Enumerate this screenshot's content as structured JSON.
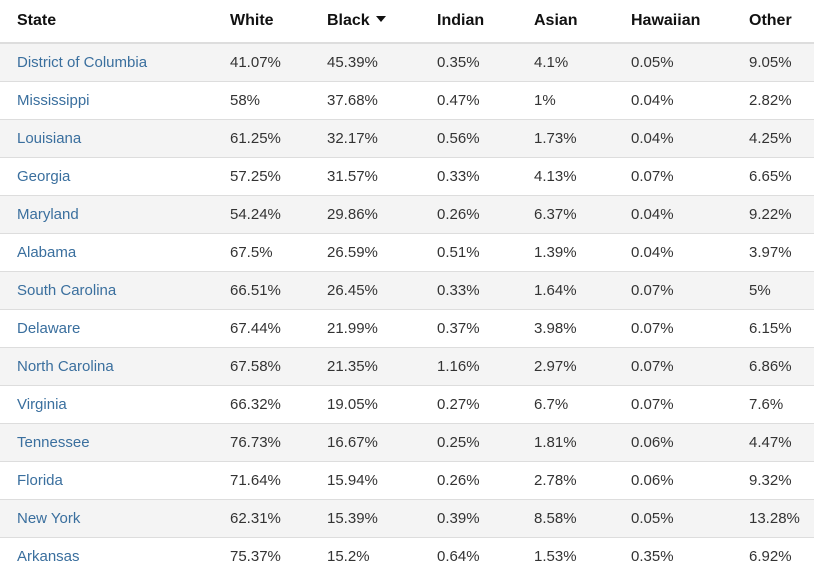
{
  "table": {
    "columns": [
      {
        "label": "State",
        "sorted": false
      },
      {
        "label": "White",
        "sorted": false
      },
      {
        "label": "Black",
        "sorted": true,
        "sort_direction": "descending"
      },
      {
        "label": "Indian",
        "sorted": false
      },
      {
        "label": "Asian",
        "sorted": false
      },
      {
        "label": "Hawaiian",
        "sorted": false
      },
      {
        "label": "Other",
        "sorted": false
      }
    ],
    "rows": [
      [
        "District of Columbia",
        "41.07%",
        "45.39%",
        "0.35%",
        "4.1%",
        "0.05%",
        "9.05%"
      ],
      [
        "Mississippi",
        "58%",
        "37.68%",
        "0.47%",
        "1%",
        "0.04%",
        "2.82%"
      ],
      [
        "Louisiana",
        "61.25%",
        "32.17%",
        "0.56%",
        "1.73%",
        "0.04%",
        "4.25%"
      ],
      [
        "Georgia",
        "57.25%",
        "31.57%",
        "0.33%",
        "4.13%",
        "0.07%",
        "6.65%"
      ],
      [
        "Maryland",
        "54.24%",
        "29.86%",
        "0.26%",
        "6.37%",
        "0.04%",
        "9.22%"
      ],
      [
        "Alabama",
        "67.5%",
        "26.59%",
        "0.51%",
        "1.39%",
        "0.04%",
        "3.97%"
      ],
      [
        "South Carolina",
        "66.51%",
        "26.45%",
        "0.33%",
        "1.64%",
        "0.07%",
        "5%"
      ],
      [
        "Delaware",
        "67.44%",
        "21.99%",
        "0.37%",
        "3.98%",
        "0.07%",
        "6.15%"
      ],
      [
        "North Carolina",
        "67.58%",
        "21.35%",
        "1.16%",
        "2.97%",
        "0.07%",
        "6.86%"
      ],
      [
        "Virginia",
        "66.32%",
        "19.05%",
        "0.27%",
        "6.7%",
        "0.07%",
        "7.6%"
      ],
      [
        "Tennessee",
        "76.73%",
        "16.67%",
        "0.25%",
        "1.81%",
        "0.06%",
        "4.47%"
      ],
      [
        "Florida",
        "71.64%",
        "15.94%",
        "0.26%",
        "2.78%",
        "0.06%",
        "9.32%"
      ],
      [
        "New York",
        "62.31%",
        "15.39%",
        "0.39%",
        "8.58%",
        "0.05%",
        "13.28%"
      ],
      [
        "Arkansas",
        "75.37%",
        "15.2%",
        "0.64%",
        "1.53%",
        "0.35%",
        "6.92%"
      ]
    ]
  },
  "colors": {
    "link": "#3a6f9e",
    "stripe": "#f4f4f4",
    "border": "#dddddd"
  }
}
